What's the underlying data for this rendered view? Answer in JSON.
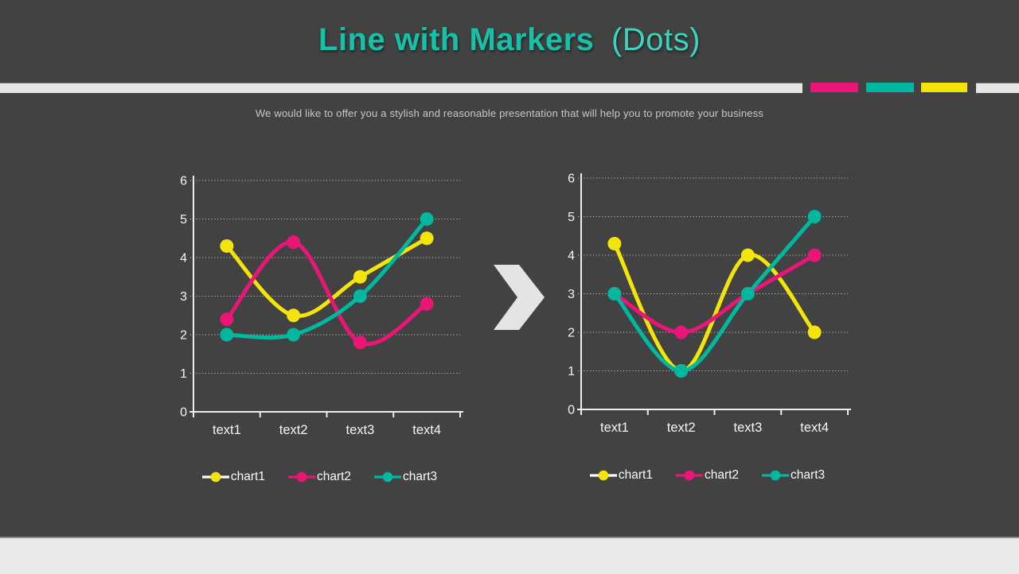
{
  "slide": {
    "title_main": "Line with Markers",
    "title_suffix": "(Dots)",
    "subtitle": "We would like to offer you a stylish and reasonable presentation that will help you to promote your business"
  },
  "colors": {
    "background": "#424242",
    "accent_yellow": "#f3e50a",
    "accent_pink": "#ea1677",
    "accent_teal": "#00b79f",
    "title_teal_bold": "#17c0a8",
    "title_teal_light": "#3bd4bf",
    "divider_light": "#e6e6e6",
    "axis_text": "#f5f5f5",
    "subtitle_gray": "#c8c8c8",
    "footer_light": "#e9e9e9",
    "arrow_light": "#e4e4e4"
  },
  "decor_bars": {
    "segments": [
      "#e6e6e6",
      "#ea1677",
      "#00b79f",
      "#f3e50a",
      "#e6e6e6"
    ]
  },
  "arrow_icon": "chevron-right",
  "chart_data": [
    {
      "type": "line",
      "title": "",
      "xlabel": "",
      "ylabel": "",
      "categories": [
        "text1",
        "text2",
        "text3",
        "text4"
      ],
      "series": [
        {
          "name": "chart1",
          "color": "#f3e50a",
          "legend_line_color": "#ffffff",
          "values": [
            4.3,
            2.5,
            3.5,
            4.5
          ]
        },
        {
          "name": "chart2",
          "color": "#ea1677",
          "legend_line_color": "#ea1677",
          "values": [
            2.4,
            4.4,
            1.8,
            2.8
          ]
        },
        {
          "name": "chart3",
          "color": "#00b79f",
          "legend_line_color": "#00b79f",
          "values": [
            2,
            2,
            3,
            5
          ]
        }
      ],
      "ylim": [
        0,
        6
      ],
      "yticks": [
        0,
        1,
        2,
        3,
        4,
        5,
        6
      ],
      "grid": "horizontal-dotted",
      "marker": "dot",
      "line_style": "smooth",
      "legend_position": "bottom"
    },
    {
      "type": "line",
      "title": "",
      "xlabel": "",
      "ylabel": "",
      "categories": [
        "text1",
        "text2",
        "text3",
        "text4"
      ],
      "series": [
        {
          "name": "chart1",
          "color": "#f3e50a",
          "legend_line_color": "#ffffff",
          "values": [
            4.3,
            1,
            4,
            2
          ]
        },
        {
          "name": "chart2",
          "color": "#ea1677",
          "legend_line_color": "#ea1677",
          "values": [
            3,
            2,
            3,
            4
          ]
        },
        {
          "name": "chart3",
          "color": "#00b79f",
          "legend_line_color": "#00b79f",
          "values": [
            3,
            1,
            3,
            5
          ]
        }
      ],
      "ylim": [
        0,
        6
      ],
      "yticks": [
        0,
        1,
        2,
        3,
        4,
        5,
        6
      ],
      "grid": "horizontal-dotted",
      "marker": "dot",
      "line_style": "smooth",
      "legend_position": "bottom"
    }
  ]
}
